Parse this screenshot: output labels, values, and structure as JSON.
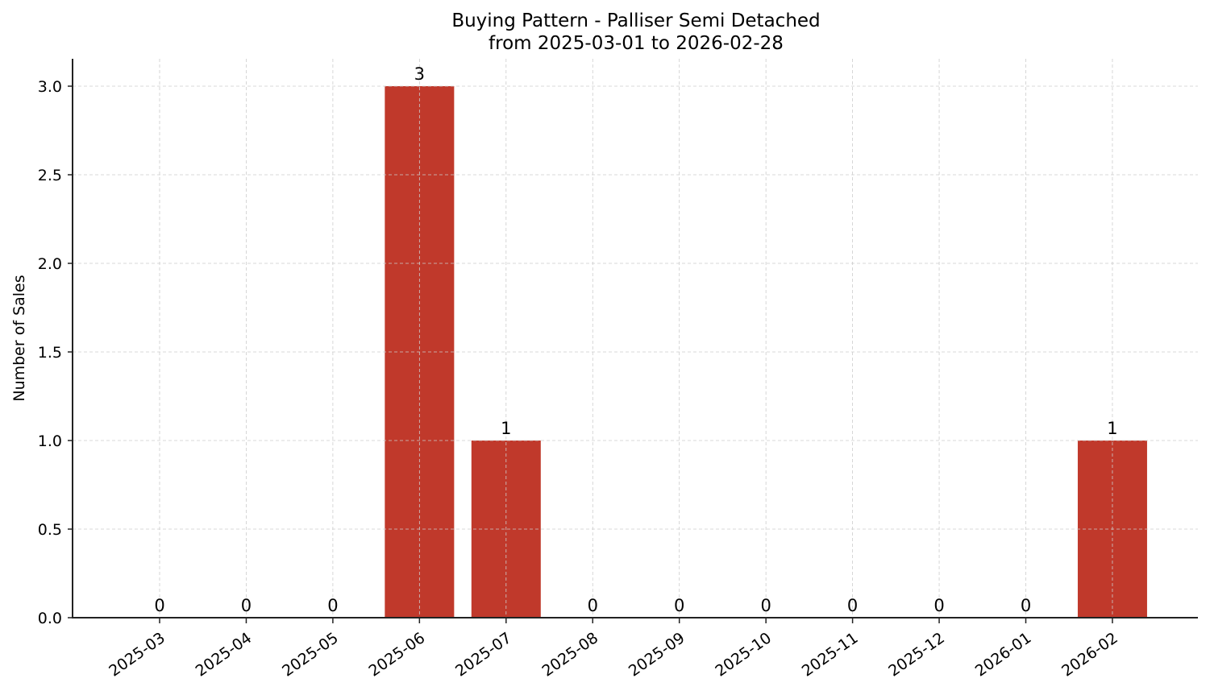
{
  "chart_data": {
    "type": "bar",
    "title": "Buying Pattern - Palliser Semi Detached",
    "subtitle": "from 2025-03-01 to 2026-02-28",
    "xlabel": "",
    "ylabel": "Number of Sales",
    "categories": [
      "2025-03",
      "2025-04",
      "2025-05",
      "2025-06",
      "2025-07",
      "2025-08",
      "2025-09",
      "2025-10",
      "2025-11",
      "2025-12",
      "2026-01",
      "2026-02"
    ],
    "values": [
      0,
      0,
      0,
      3,
      1,
      0,
      0,
      0,
      0,
      0,
      0,
      1
    ],
    "data_labels": [
      "0",
      "0",
      "0",
      "3",
      "1",
      "0",
      "0",
      "0",
      "0",
      "0",
      "0",
      "1"
    ],
    "ylim": [
      0,
      3.15
    ],
    "yticks": [
      "0.0",
      "0.5",
      "1.0",
      "1.5",
      "2.0",
      "2.5",
      "3.0"
    ],
    "ytick_values": [
      0,
      0.5,
      1.0,
      1.5,
      2.0,
      2.5,
      3.0
    ],
    "grid": true,
    "grid_style": "dashed",
    "bar_color": "#c0392b",
    "legend": null,
    "xtick_rotation": 35
  }
}
